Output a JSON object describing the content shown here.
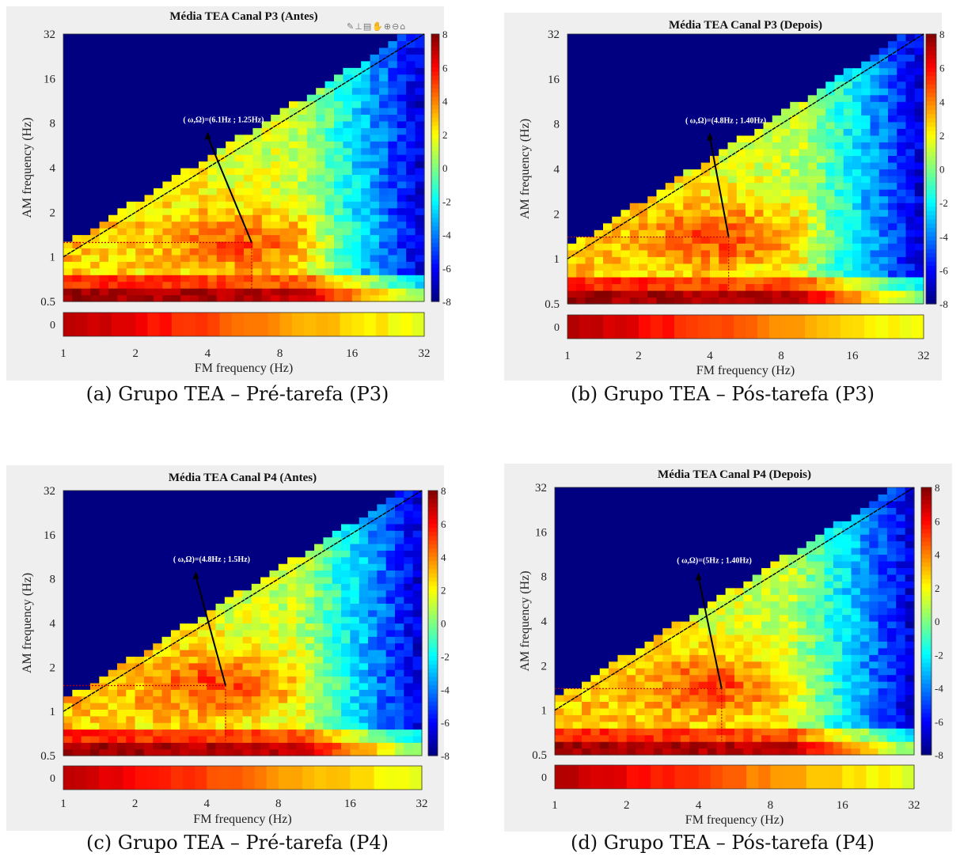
{
  "colors": {
    "background_panel": "#efefef",
    "annotation_line": "#000000",
    "marker_line": "#c00000",
    "colormap": "jet"
  },
  "panels": [
    {
      "title": "Média TEA Canal P3 (Antes)",
      "annotation": "( ω,Ω)=(6.1Hz ; 1.25Hz)",
      "caption": "(a) Grupo TEA – Pré-tarefa (P3)",
      "toolbar_icons": [
        "brush-icon",
        "data-tips-icon",
        "export-icon",
        "pan-icon",
        "zoom-in-icon",
        "zoom-out-icon",
        "home-icon"
      ]
    },
    {
      "title": "Média TEA Canal P3 (Depois)",
      "annotation": "( ω,Ω)=(4.8Hz ; 1.40Hz)",
      "caption": "(b) Grupo TEA – Pós-tarefa (P3)"
    },
    {
      "title": "Média TEA Canal P4 (Antes)",
      "annotation": "( ω,Ω)=(4.8Hz ; 1.5Hz)",
      "caption": "(c) Grupo TEA – Pré-tarefa (P4)"
    },
    {
      "title": "Média TEA Canal P4 (Depois)",
      "annotation": "( ω,Ω)=(5Hz ; 1.40Hz)",
      "caption": "(d) Grupo TEA – Pós-tarefa (P4)"
    }
  ],
  "chart_data": [
    {
      "type": "heatmap",
      "title": "Média TEA Canal P3 (Antes)",
      "xlabel": "FM frequency (Hz)",
      "ylabel": "AM frequency (Hz)",
      "x_scale": "log2",
      "y_scale": "log2",
      "xlim": [
        1,
        32
      ],
      "ylim": [
        0.5,
        32
      ],
      "xticks": [
        "1",
        "2",
        "4",
        "8",
        "16",
        "32"
      ],
      "yticks": [
        "0.5",
        "1",
        "2",
        "4",
        "8",
        "16",
        "32"
      ],
      "bottom_strip_label": "0",
      "colorbar": {
        "min": -8,
        "max": 8,
        "ticks": [
          "8",
          "6",
          "4",
          "2",
          "0",
          "-2",
          "-4",
          "-6",
          "-8"
        ]
      },
      "marked_point": {
        "fm_hz": 6.1,
        "am_hz": 1.25
      },
      "label_anchor": {
        "fm_hz": 4.0,
        "am_hz": 7.0
      },
      "diagonal": "AM = FM",
      "grid": false
    },
    {
      "type": "heatmap",
      "title": "Média TEA Canal P3 (Depois)",
      "xlabel": "FM frequency (Hz)",
      "ylabel": "AM frequency (Hz)",
      "x_scale": "log2",
      "y_scale": "log2",
      "xlim": [
        1,
        32
      ],
      "ylim": [
        0.5,
        32
      ],
      "xticks": [
        "1",
        "2",
        "4",
        "8",
        "16",
        "32"
      ],
      "yticks": [
        "0.5",
        "1",
        "2",
        "4",
        "8",
        "16",
        "32"
      ],
      "bottom_strip_label": "0",
      "colorbar": {
        "min": -8,
        "max": 8,
        "ticks": [
          "8",
          "6",
          "4",
          "2",
          "0",
          "-2",
          "-4",
          "-6",
          "-8"
        ]
      },
      "marked_point": {
        "fm_hz": 4.8,
        "am_hz": 1.4
      },
      "label_anchor": {
        "fm_hz": 4.0,
        "am_hz": 7.0
      },
      "diagonal": "AM = FM",
      "grid": false
    },
    {
      "type": "heatmap",
      "title": "Média TEA Canal P4 (Antes)",
      "xlabel": "FM frequency (Hz)",
      "ylabel": "AM frequency (Hz)",
      "x_scale": "log2",
      "y_scale": "log2",
      "xlim": [
        1,
        32
      ],
      "ylim": [
        0.5,
        32
      ],
      "xticks": [
        "1",
        "2",
        "4",
        "8",
        "16",
        "32"
      ],
      "yticks": [
        "0.5",
        "1",
        "2",
        "4",
        "8",
        "16",
        "32"
      ],
      "bottom_strip_label": "0",
      "colorbar": {
        "min": -8,
        "max": 8,
        "ticks": [
          "8",
          "6",
          "4",
          "2",
          "0",
          "-2",
          "-4",
          "-6",
          "-8"
        ]
      },
      "marked_point": {
        "fm_hz": 4.8,
        "am_hz": 1.5
      },
      "label_anchor": {
        "fm_hz": 3.6,
        "am_hz": 9.0
      },
      "diagonal": "AM = FM",
      "grid": false
    },
    {
      "type": "heatmap",
      "title": "Média TEA Canal P4 (Depois)",
      "xlabel": "FM frequency (Hz)",
      "ylabel": "AM frequency (Hz)",
      "x_scale": "log2",
      "y_scale": "log2",
      "xlim": [
        1,
        32
      ],
      "ylim": [
        0.5,
        32
      ],
      "xticks": [
        "1",
        "2",
        "4",
        "8",
        "16",
        "32"
      ],
      "yticks": [
        "0.5",
        "1",
        "2",
        "4",
        "8",
        "16",
        "32"
      ],
      "bottom_strip_label": "0",
      "colorbar": {
        "min": -8,
        "max": 8,
        "ticks": [
          "8",
          "6",
          "4",
          "2",
          "0",
          "-2",
          "-4",
          "-6",
          "-8"
        ]
      },
      "marked_point": {
        "fm_hz": 5.0,
        "am_hz": 1.4
      },
      "label_anchor": {
        "fm_hz": 4.0,
        "am_hz": 8.5
      },
      "diagonal": "AM = FM",
      "grid": false
    }
  ]
}
